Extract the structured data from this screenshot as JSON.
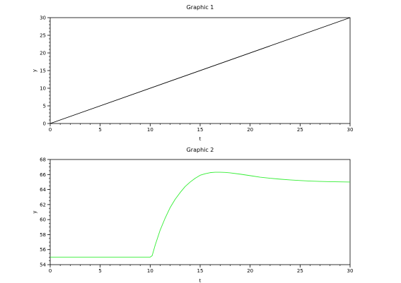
{
  "chart_data": [
    {
      "type": "line",
      "title": "Graphic 1",
      "xlabel": "t",
      "ylabel": "y",
      "xlim": [
        0,
        30
      ],
      "ylim": [
        0,
        30
      ],
      "xticks": [
        0,
        5,
        10,
        15,
        20,
        25,
        30
      ],
      "yticks": [
        0,
        5,
        10,
        15,
        20,
        25,
        30
      ],
      "grid": false,
      "series": [
        {
          "color": "#000000",
          "x": [
            0,
            30
          ],
          "y": [
            0,
            30
          ]
        }
      ]
    },
    {
      "type": "line",
      "title": "Graphic 2",
      "xlabel": "t",
      "ylabel": "y",
      "xlim": [
        0,
        30
      ],
      "ylim": [
        54,
        68
      ],
      "xticks": [
        0,
        5,
        10,
        15,
        20,
        25,
        30
      ],
      "yticks": [
        54,
        56,
        58,
        60,
        62,
        64,
        66,
        68
      ],
      "grid": false,
      "series": [
        {
          "color": "#33ee33",
          "x": [
            0,
            10,
            10.2,
            10.5,
            11,
            11.5,
            12,
            12.5,
            13,
            13.5,
            14,
            14.5,
            15,
            15.5,
            16,
            16.5,
            17,
            17.5,
            18,
            19,
            20,
            21,
            22,
            23,
            24,
            25,
            26,
            27,
            28,
            29,
            30
          ],
          "y": [
            55,
            55,
            55.2,
            56.6,
            58.6,
            60.2,
            61.6,
            62.7,
            63.6,
            64.4,
            65.0,
            65.5,
            65.9,
            66.1,
            66.25,
            66.3,
            66.3,
            66.28,
            66.22,
            66.05,
            65.85,
            65.65,
            65.5,
            65.38,
            65.28,
            65.2,
            65.13,
            65.08,
            65.05,
            65.02,
            65.0
          ]
        }
      ]
    }
  ]
}
